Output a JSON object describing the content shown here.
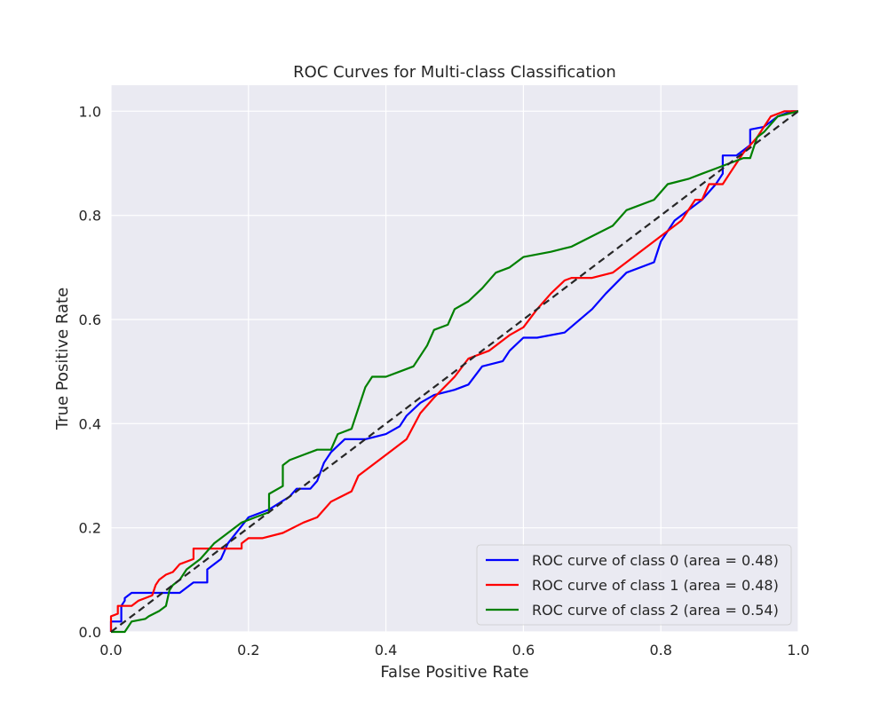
{
  "chart_data": {
    "type": "line",
    "title": "ROC Curves for Multi-class Classification",
    "xlabel": "False Positive Rate",
    "ylabel": "True Positive Rate",
    "xlim": [
      0.0,
      1.0
    ],
    "ylim": [
      0.0,
      1.05
    ],
    "xticks": [
      "0.0",
      "0.2",
      "0.4",
      "0.6",
      "0.8",
      "1.0"
    ],
    "yticks": [
      "0.0",
      "0.2",
      "0.4",
      "0.6",
      "0.8",
      "1.0"
    ],
    "grid": true,
    "legend_position": "lower-right",
    "background_color": "#eaeaf2",
    "diagonal": {
      "x": [
        0,
        1
      ],
      "y": [
        0,
        1
      ],
      "color": "#262626",
      "style": "dashed"
    },
    "series": [
      {
        "name": "ROC curve of class 0 (area = 0.48)",
        "color": "#0000ff",
        "x": [
          0,
          0,
          0.015,
          0.015,
          0.02,
          0.02,
          0.03,
          0.035,
          0.04,
          0.04,
          0.06,
          0.1,
          0.12,
          0.14,
          0.14,
          0.16,
          0.17,
          0.2,
          0.23,
          0.26,
          0.27,
          0.29,
          0.3,
          0.31,
          0.32,
          0.34,
          0.37,
          0.4,
          0.42,
          0.43,
          0.45,
          0.47,
          0.5,
          0.52,
          0.54,
          0.57,
          0.58,
          0.6,
          0.62,
          0.66,
          0.7,
          0.72,
          0.75,
          0.79,
          0.8,
          0.82,
          0.86,
          0.88,
          0.89,
          0.89,
          0.91,
          0.93,
          0.93,
          0.95,
          0.97,
          0.99,
          1.0
        ],
        "y": [
          0,
          0.02,
          0.02,
          0.05,
          0.06,
          0.065,
          0.075,
          0.075,
          0.075,
          0.075,
          0.075,
          0.075,
          0.095,
          0.095,
          0.12,
          0.14,
          0.17,
          0.22,
          0.235,
          0.26,
          0.275,
          0.275,
          0.29,
          0.325,
          0.345,
          0.37,
          0.37,
          0.38,
          0.395,
          0.415,
          0.44,
          0.455,
          0.465,
          0.475,
          0.51,
          0.52,
          0.54,
          0.565,
          0.565,
          0.575,
          0.62,
          0.65,
          0.69,
          0.71,
          0.75,
          0.79,
          0.83,
          0.86,
          0.88,
          0.915,
          0.915,
          0.935,
          0.965,
          0.97,
          0.99,
          1.0,
          1.0
        ]
      },
      {
        "name": "ROC curve of class 1 (area = 0.48)",
        "color": "#ff0000",
        "x": [
          0,
          0,
          0.01,
          0.01,
          0.03,
          0.04,
          0.05,
          0.06,
          0.065,
          0.07,
          0.08,
          0.09,
          0.1,
          0.12,
          0.12,
          0.17,
          0.19,
          0.19,
          0.2,
          0.22,
          0.25,
          0.28,
          0.3,
          0.32,
          0.35,
          0.36,
          0.39,
          0.42,
          0.43,
          0.45,
          0.47,
          0.5,
          0.52,
          0.55,
          0.58,
          0.6,
          0.62,
          0.64,
          0.66,
          0.67,
          0.7,
          0.73,
          0.78,
          0.81,
          0.83,
          0.85,
          0.86,
          0.87,
          0.88,
          0.89,
          0.9,
          0.91,
          0.92,
          0.94,
          0.95,
          0.96,
          0.96,
          0.98,
          1.0
        ],
        "y": [
          0,
          0.03,
          0.035,
          0.05,
          0.05,
          0.06,
          0.065,
          0.07,
          0.09,
          0.1,
          0.11,
          0.115,
          0.13,
          0.14,
          0.16,
          0.16,
          0.16,
          0.17,
          0.18,
          0.18,
          0.19,
          0.21,
          0.22,
          0.25,
          0.27,
          0.3,
          0.33,
          0.36,
          0.37,
          0.42,
          0.45,
          0.49,
          0.525,
          0.54,
          0.57,
          0.585,
          0.62,
          0.65,
          0.675,
          0.68,
          0.68,
          0.69,
          0.74,
          0.77,
          0.79,
          0.83,
          0.83,
          0.86,
          0.86,
          0.86,
          0.88,
          0.9,
          0.92,
          0.95,
          0.97,
          0.99,
          0.99,
          1.0,
          1.0
        ]
      },
      {
        "name": "ROC curve of class 2 (area = 0.54)",
        "color": "#008000",
        "x": [
          0,
          0.02,
          0.03,
          0.03,
          0.05,
          0.055,
          0.07,
          0.08,
          0.085,
          0.09,
          0.1,
          0.11,
          0.13,
          0.15,
          0.19,
          0.21,
          0.23,
          0.23,
          0.25,
          0.25,
          0.26,
          0.28,
          0.3,
          0.32,
          0.33,
          0.35,
          0.37,
          0.38,
          0.4,
          0.42,
          0.44,
          0.46,
          0.47,
          0.49,
          0.5,
          0.52,
          0.54,
          0.56,
          0.58,
          0.6,
          0.64,
          0.67,
          0.7,
          0.73,
          0.75,
          0.79,
          0.81,
          0.84,
          0.86,
          0.88,
          0.9,
          0.92,
          0.93,
          0.94,
          0.95,
          0.97,
          1.0
        ],
        "y": [
          0,
          0,
          0.02,
          0.02,
          0.025,
          0.03,
          0.04,
          0.05,
          0.08,
          0.09,
          0.1,
          0.12,
          0.14,
          0.17,
          0.21,
          0.22,
          0.23,
          0.265,
          0.28,
          0.32,
          0.33,
          0.34,
          0.35,
          0.35,
          0.38,
          0.39,
          0.47,
          0.49,
          0.49,
          0.5,
          0.51,
          0.55,
          0.58,
          0.59,
          0.62,
          0.635,
          0.66,
          0.69,
          0.7,
          0.72,
          0.73,
          0.74,
          0.76,
          0.78,
          0.81,
          0.83,
          0.86,
          0.87,
          0.88,
          0.89,
          0.9,
          0.91,
          0.91,
          0.95,
          0.96,
          0.99,
          1.0
        ]
      }
    ]
  }
}
